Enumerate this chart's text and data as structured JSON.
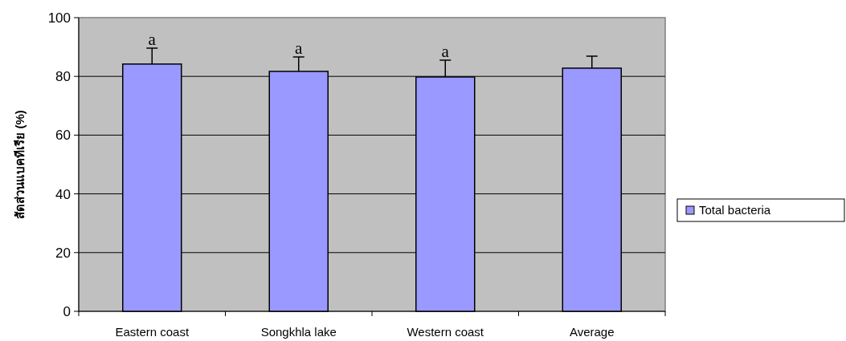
{
  "chart_data": {
    "type": "bar",
    "ylabel": "สัดส่วนแบคทีเรีย (%)",
    "categories": [
      "Eastern coast",
      "Songkhla lake",
      "Western coast",
      "Average"
    ],
    "series": [
      {
        "name": "Total bacteria",
        "color": "#9999ff",
        "values": [
          84.2,
          81.7,
          79.8,
          82.8
        ],
        "errors": [
          [
            84.2,
            89.6
          ],
          [
            81.7,
            86.6
          ],
          [
            79.8,
            85.5
          ],
          [
            82.8,
            86.9
          ]
        ]
      }
    ],
    "ylim": [
      0,
      100
    ],
    "yticks": [
      0,
      20,
      40,
      60,
      80,
      100
    ],
    "grid": "y",
    "legend": "right",
    "annotations": [
      {
        "text": "a",
        "x": "Eastern coast",
        "y": 89.6
      },
      {
        "text": "a",
        "x": "Songkhla lake",
        "y": 86.6
      },
      {
        "text": "a",
        "x": "Western coast",
        "y": 85.5
      }
    ]
  }
}
